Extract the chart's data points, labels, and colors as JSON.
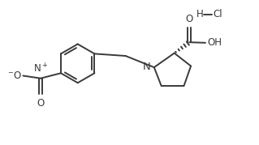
{
  "bg_color": "#ffffff",
  "line_color": "#3a3a3a",
  "bond_lw": 1.4,
  "font_size": 8.5,
  "fig_width": 3.19,
  "fig_height": 1.79,
  "dpi": 100,
  "xlim": [
    -0.5,
    9.5
  ],
  "ylim": [
    -0.3,
    5.3
  ]
}
